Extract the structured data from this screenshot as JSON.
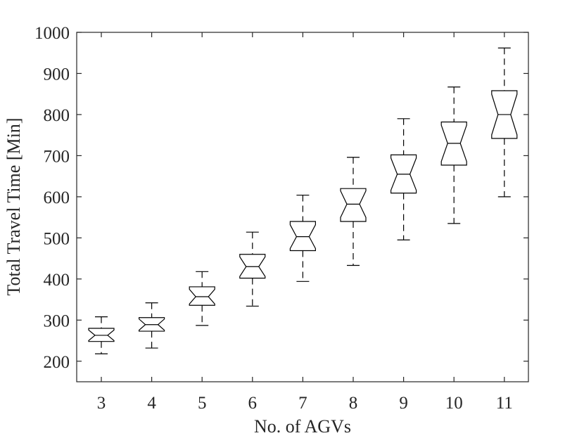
{
  "chart_data": {
    "type": "boxplot",
    "notched": true,
    "xlabel": "No. of AGVs",
    "ylabel": "Total Travel Time [Min]",
    "categories": [
      "3",
      "4",
      "5",
      "6",
      "7",
      "8",
      "9",
      "10",
      "11"
    ],
    "ylim": [
      150,
      1000
    ],
    "yticks": [
      200,
      300,
      400,
      500,
      600,
      700,
      800,
      900,
      1000
    ],
    "grid": false,
    "boxes": [
      {
        "category": "3",
        "min": 218,
        "q1": 248,
        "median": 263,
        "q3": 280,
        "max": 308
      },
      {
        "category": "4",
        "min": 232,
        "q1": 273,
        "median": 289,
        "q3": 306,
        "max": 342
      },
      {
        "category": "5",
        "min": 287,
        "q1": 336,
        "median": 357,
        "q3": 381,
        "max": 418
      },
      {
        "category": "6",
        "min": 334,
        "q1": 402,
        "median": 430,
        "q3": 460,
        "max": 514
      },
      {
        "category": "7",
        "min": 394,
        "q1": 469,
        "median": 503,
        "q3": 540,
        "max": 604
      },
      {
        "category": "8",
        "min": 433,
        "q1": 540,
        "median": 582,
        "q3": 620,
        "max": 696
      },
      {
        "category": "9",
        "min": 495,
        "q1": 609,
        "median": 655,
        "q3": 702,
        "max": 790
      },
      {
        "category": "10",
        "min": 535,
        "q1": 677,
        "median": 730,
        "q3": 782,
        "max": 867
      },
      {
        "category": "11",
        "min": 600,
        "q1": 742,
        "median": 800,
        "q3": 858,
        "max": 962
      }
    ]
  }
}
